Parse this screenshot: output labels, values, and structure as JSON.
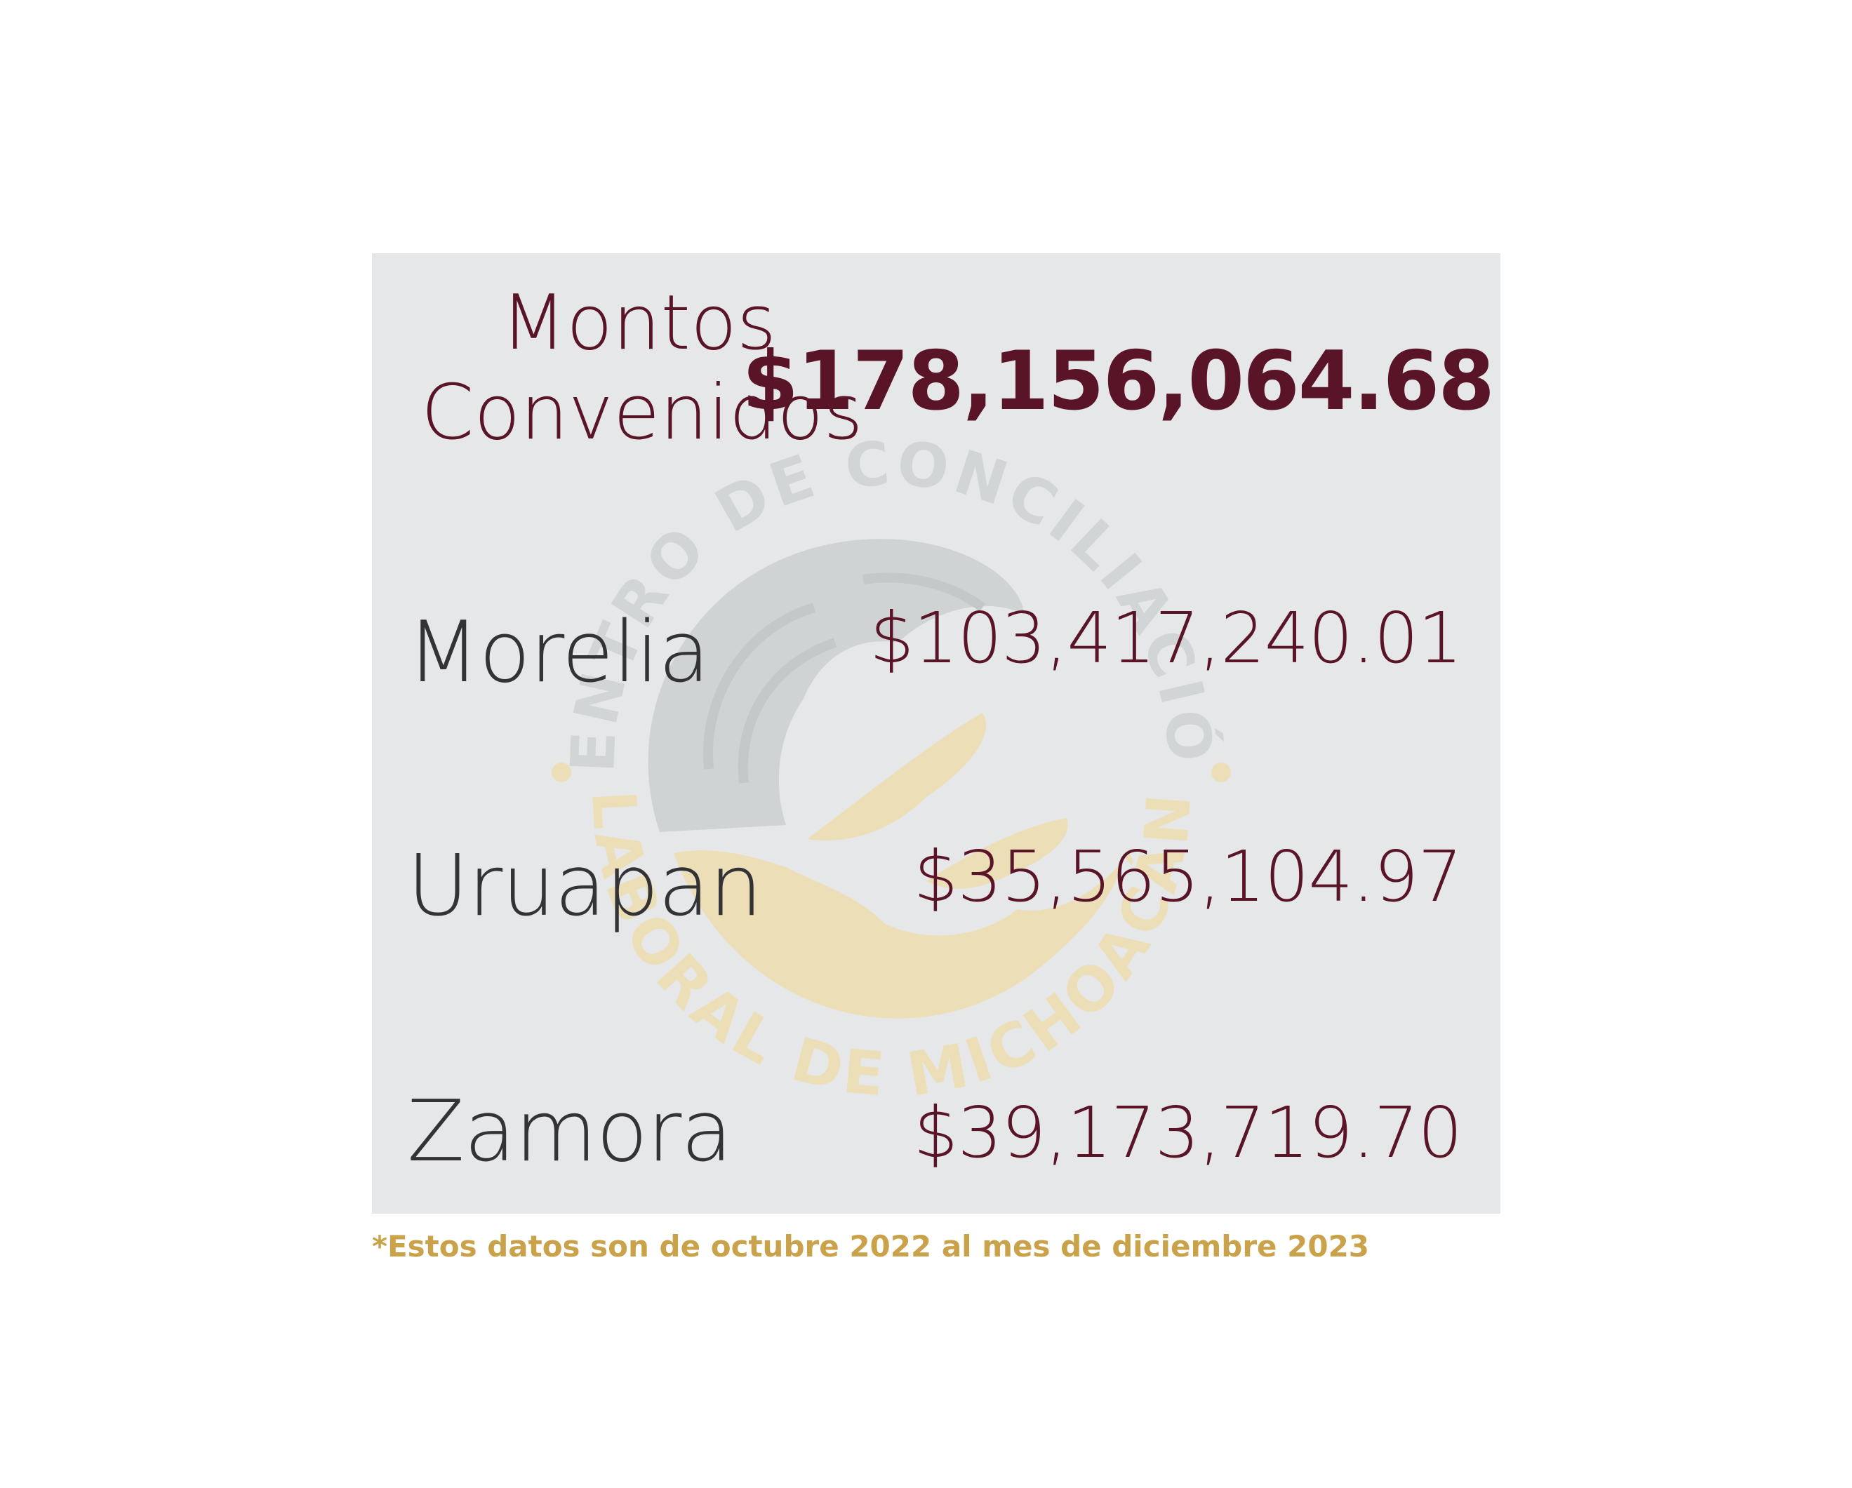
{
  "title": {
    "line1": "Montos",
    "line2": "Convenidos"
  },
  "total": "$178,156,064.68",
  "rows": [
    {
      "city": "Morelia",
      "amount": "$103,417,240.01"
    },
    {
      "city": "Uruapan",
      "amount": "$35,565,104.97"
    },
    {
      "city": "Zamora",
      "amount": "$39,173,719.70"
    }
  ],
  "footnote": "*Estos datos son de octubre 2022 al mes de diciembre 2023",
  "watermark": {
    "top_text": "CENTRO DE CONCILIACIÓN",
    "bottom_text": "LABORAL DE MICHOACÁN"
  },
  "colors": {
    "accent": "#5a1428",
    "city_text": "#333336",
    "footnote": "#c9a24a",
    "panel_bg": "#e6e7e9",
    "watermark_gold": "#ecdfb8",
    "watermark_gray": "#cfd3d3"
  }
}
